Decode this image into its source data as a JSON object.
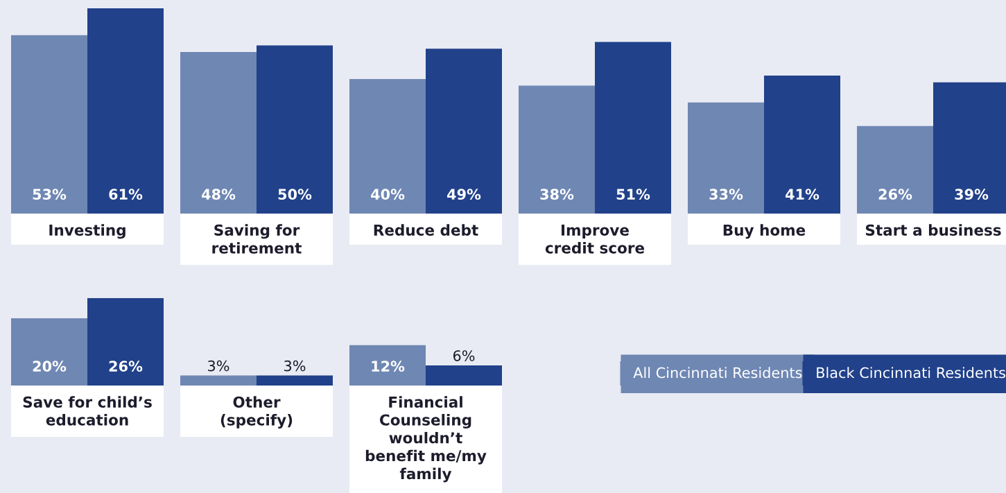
{
  "chart_data": [
    {
      "type": "bar",
      "categories": [
        "Investing",
        "Saving for\nretirement",
        "Reduce debt",
        "Improve\ncredit score",
        "Buy home",
        "Start a business"
      ],
      "series": [
        {
          "color": "#6f87b3",
          "values": [
            53,
            48,
            40,
            38,
            33,
            26
          ],
          "value_labels": [
            "53%",
            "48%",
            "40%",
            "38%",
            "33%",
            "26%"
          ]
        },
        {
          "color": "#21418a",
          "values": [
            61,
            50,
            49,
            51,
            41,
            39
          ],
          "value_labels": [
            "61%",
            "50%",
            "49%",
            "51%",
            "41%",
            "39%"
          ]
        }
      ]
    },
    {
      "type": "bar",
      "categories": [
        "Save for child’s\neducation",
        "Other\n(specify)",
        "Financial\nCounseling\nwouldn’t\nbenefit me/my\nfamily"
      ],
      "series": [
        {
          "name": "All Cincinnati Residents",
          "color": "#6f87b3",
          "values": [
            20,
            3,
            12
          ],
          "value_labels": [
            "20%",
            "3%",
            "12%"
          ]
        },
        {
          "name": "Black Cincinnati Residents",
          "color": "#21418a",
          "values": [
            26,
            3,
            6
          ],
          "value_labels": [
            "26%",
            "3%",
            "6%"
          ]
        }
      ],
      "legend": "bottom right"
    }
  ]
}
